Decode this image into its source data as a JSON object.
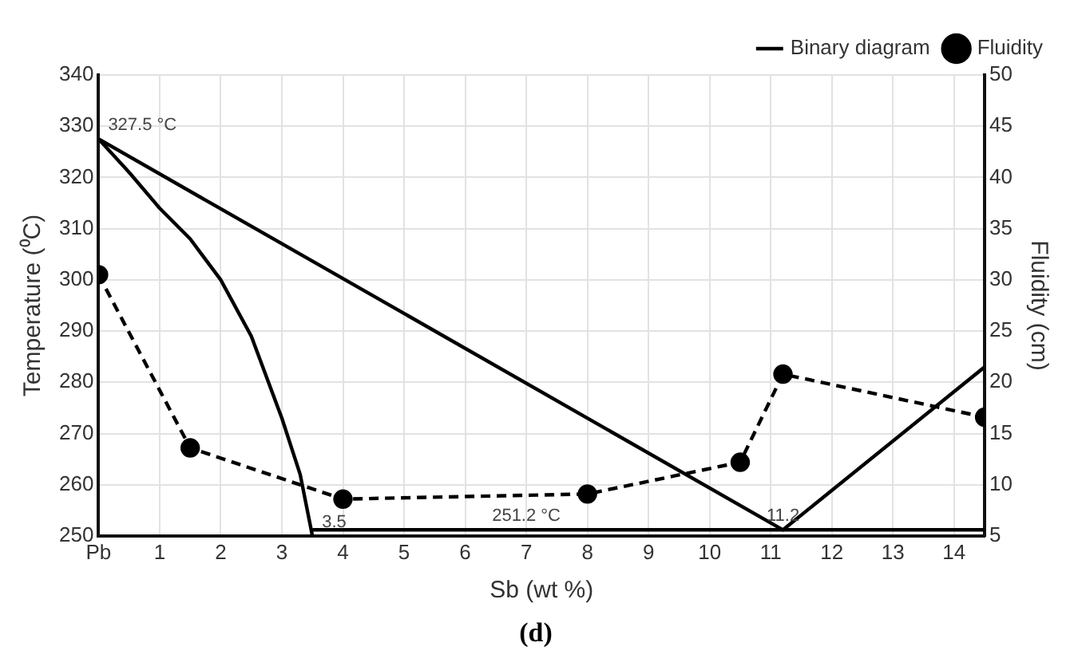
{
  "chart_data": {
    "type": "line",
    "title": "(d)",
    "xlabel": "Sb (wt %)",
    "ylabel": "Temperature (⁰C)",
    "y2label": "Fluidity (cm)",
    "xlim": [
      0,
      14.5
    ],
    "xticks": [
      {
        "value": 0,
        "label": "Pb"
      },
      1,
      2,
      3,
      4,
      5,
      6,
      7,
      8,
      9,
      10,
      11,
      12,
      13,
      14
    ],
    "ylim": [
      250,
      340
    ],
    "yticks": [
      250,
      260,
      270,
      280,
      290,
      300,
      310,
      320,
      330,
      340
    ],
    "y2lim": [
      5,
      50
    ],
    "y2ticks": [
      5,
      10,
      15,
      20,
      25,
      30,
      35,
      40,
      45,
      50
    ],
    "grid": true,
    "legend": "top right",
    "series": [
      {
        "name": "Binary diagram",
        "color": "#000000",
        "line_style": "solid",
        "marker": "none",
        "x": [
          0,
          11.2,
          14.5
        ],
        "values": [
          327.5,
          251.2,
          283
        ]
      },
      {
        "color": "#000000",
        "line_style": "solid",
        "marker": "none",
        "x": [
          0,
          0.5,
          1,
          1.5,
          2,
          2.5,
          3,
          3.3,
          3.5
        ],
        "values": [
          327.5,
          321,
          314,
          308,
          300,
          289,
          273,
          262,
          250
        ]
      },
      {
        "color": "#000000",
        "line_style": "solid",
        "marker": "none",
        "x": [
          3.5,
          14.5
        ],
        "values": [
          251.2,
          251.2
        ]
      },
      {
        "name": "Fluidity",
        "color": "#000000",
        "line_style": "dashed",
        "marker": "circle",
        "axis": "y2",
        "x": [
          0,
          1.5,
          4,
          8,
          10.5,
          11.2,
          14.5
        ],
        "values": [
          30.5,
          13.6,
          8.6,
          9.1,
          12.2,
          20.8,
          16.6
        ]
      }
    ],
    "annotations": [
      {
        "text": "327.5 °C",
        "x": 0,
        "y": 327.5
      },
      {
        "text": "3.5",
        "x": 3.5,
        "y": 250
      },
      {
        "text": "251.2 °C",
        "x": 7,
        "y": 251.2
      },
      {
        "text": "11.2",
        "x": 11.2,
        "y": 251.2
      }
    ]
  }
}
